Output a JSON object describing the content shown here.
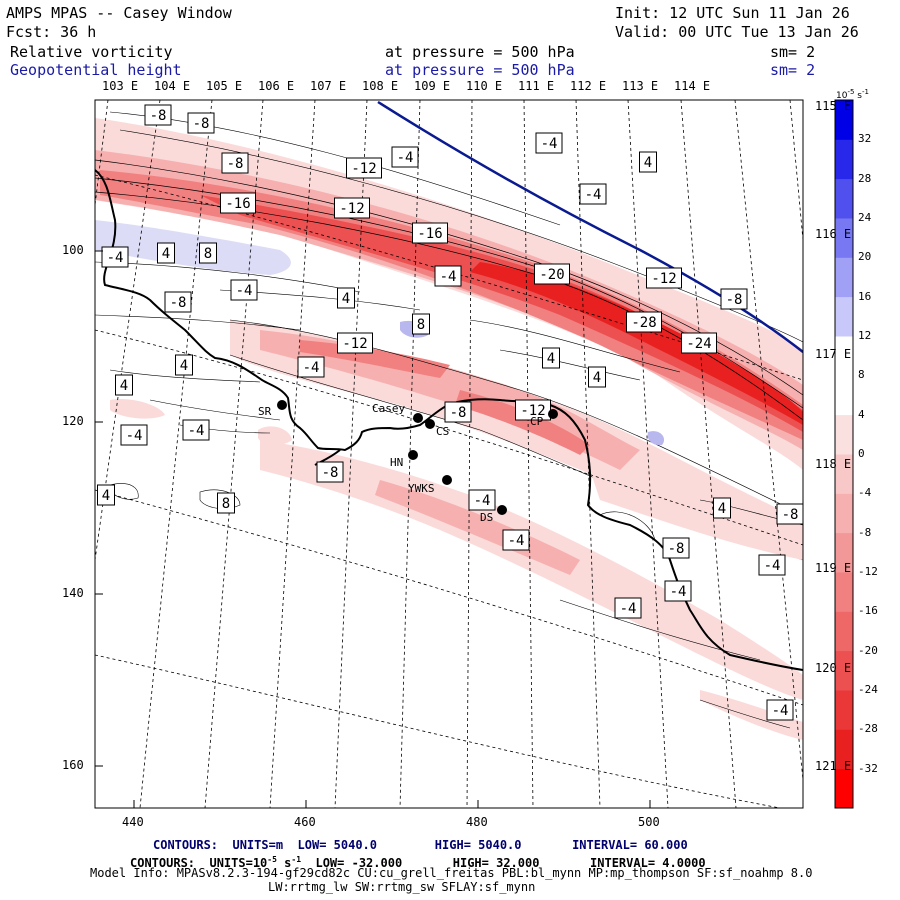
{
  "header": {
    "model_window": "AMPS MPAS -- Casey Window",
    "init": "Init: 12 UTC Sun 11 Jan 26",
    "fcst": "Fcst:   36 h",
    "valid": "Valid: 00 UTC Tue 13 Jan 26",
    "field1": "Relative vorticity",
    "field1_level": "at pressure =  500 hPa",
    "field1_sm": "sm= 2",
    "field2": "Geopotential height",
    "field2_level": "at pressure =  500 hPa",
    "field2_sm": "sm= 2"
  },
  "axes": {
    "top_lon_labels": [
      "103 E",
      "104 E",
      "105 E",
      "106 E",
      "107 E",
      "108 E",
      "109 E",
      "110 E",
      "111 E",
      "112 E",
      "113 E",
      "114 E"
    ],
    "right_lon_labels": [
      "115 E",
      "116 E",
      "117 E",
      "118 E",
      "119 E",
      "120 E",
      "121 E"
    ],
    "x_ticks": [
      "440",
      "460",
      "480",
      "500"
    ],
    "y_ticks": [
      "100",
      "120",
      "140",
      "160"
    ]
  },
  "colorbar": {
    "units": "10^-5 s^-1",
    "units_main": "10",
    "units_exp": "-5",
    "units_tail": " s",
    "units_tail_exp": "-1",
    "labels": [
      "32",
      "28",
      "24",
      "20",
      "16",
      "12",
      "8",
      "4",
      "0",
      "-4",
      "-8",
      "-12",
      "-16",
      "-20",
      "-24",
      "-28",
      "-32"
    ]
  },
  "stations": [
    {
      "name": "SR"
    },
    {
      "name": "Casey"
    },
    {
      "name": "CS"
    },
    {
      "name": "HN"
    },
    {
      "name": "YWKS"
    },
    {
      "name": "DS"
    },
    {
      "name": "CP"
    }
  ],
  "contour_labels": [
    "-8",
    "-8",
    "-8",
    "-12",
    "-4",
    "-4",
    "4",
    "-4",
    "-16",
    "-12",
    "-16",
    "-4",
    "4",
    "8",
    "-4",
    "-20",
    "-12",
    "-8",
    "-4",
    "-8",
    "4",
    "8",
    "-28",
    "-24",
    "-12",
    "-4",
    "4",
    "4",
    "4",
    "4",
    "-4",
    "-4",
    "-12",
    "-8",
    "-8",
    "-4",
    "4",
    "8",
    "4",
    "-8",
    "-4",
    "-8",
    "-4",
    "-4",
    "-4",
    "-4"
  ],
  "footer": {
    "contours1_label": "CONTOURS:",
    "contours1_units": "UNITS=m",
    "contours1_low": "LOW=  5040.0",
    "contours1_high": "HIGH=  5040.0",
    "contours1_interval": "INTERVAL=   60.000",
    "contours2_label": "CONTOURS:",
    "contours2_units_main": "UNITS=10",
    "contours2_units_exp": "-5",
    "contours2_units_tail": " s",
    "contours2_units_tail_exp": "-1",
    "contours2_low": "LOW= -32.000",
    "contours2_high": "HIGH=  32.000",
    "contours2_interval": "INTERVAL=   4.0000",
    "model_info": "Model Info: MPASv8.2.3-194-gf29cd82c CU:cu_grell_freitas PBL:bl_mynn MP:mp_thompson SF:sf_noahmp 8.0",
    "model_info2": "LW:rrtmg_lw SW:rrtmg_sw SFLAY:sf_mynn"
  }
}
